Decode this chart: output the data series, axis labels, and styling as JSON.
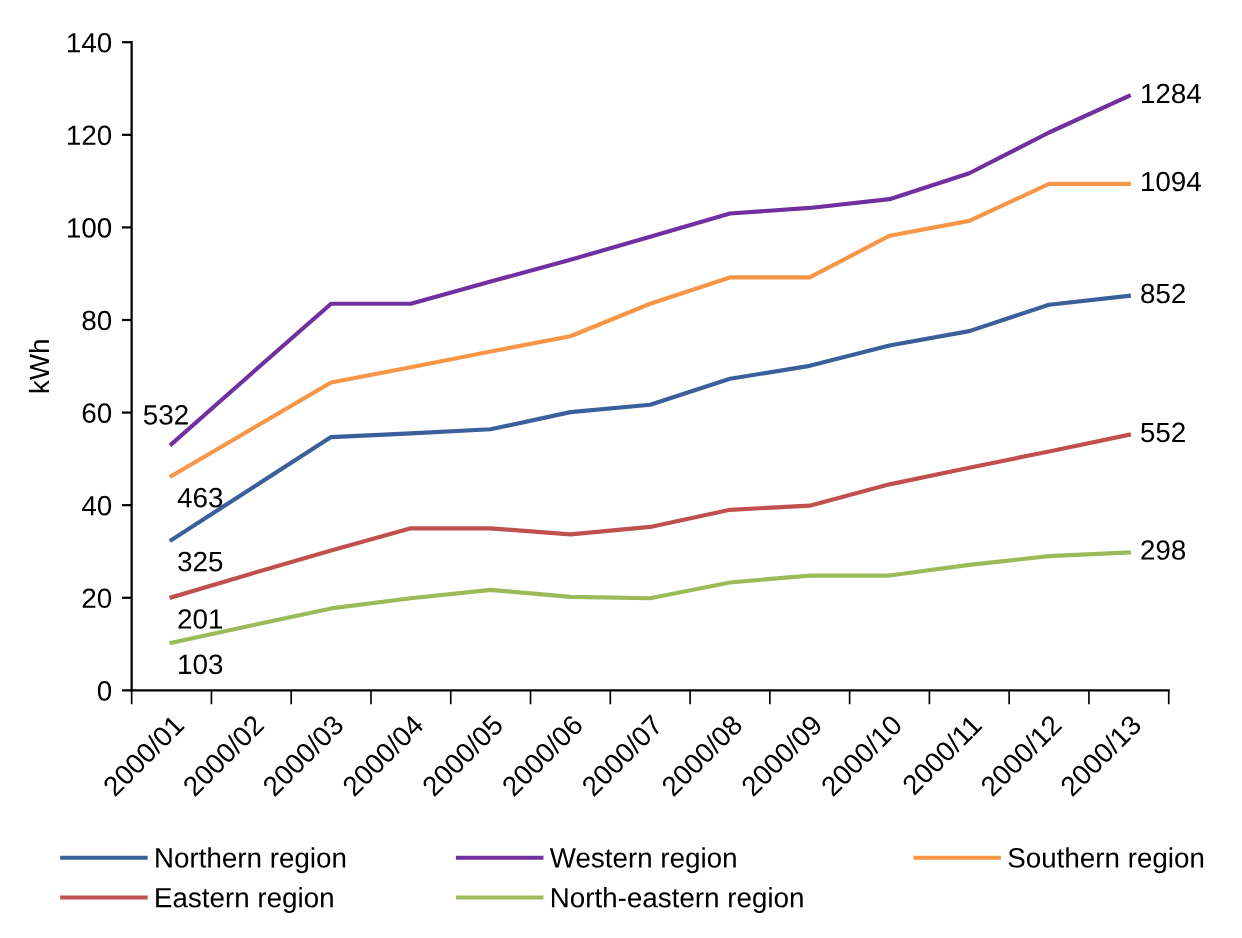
{
  "chart_data": {
    "type": "line",
    "ylabel": "kWh",
    "ylim": [
      0,
      140
    ],
    "yticks": [
      0,
      20,
      40,
      60,
      80,
      100,
      120,
      140
    ],
    "categories": [
      "2000/01",
      "2000/02",
      "2000/03",
      "2000/04",
      "2000/05",
      "2000/06",
      "2000/07",
      "2000/08",
      "2000/09",
      "2000/10",
      "2000/11",
      "2000/12",
      "2000/13"
    ],
    "grid": false,
    "legend": "bottom",
    "marker": "none",
    "line_style": "solid",
    "series": [
      {
        "name": "Northern region",
        "color": "#3b5f9b",
        "values": [
          32.5,
          43.6,
          54.7,
          55.5,
          56.4,
          60.1,
          61.7,
          67.3,
          70.1,
          74.5,
          77.6,
          83.3,
          85.2
        ]
      },
      {
        "name": "Western region",
        "color": "#7030a0",
        "values": [
          53.2,
          68.4,
          83.5,
          83.5,
          88.3,
          93.0,
          98,
          103,
          104.2,
          106.1,
          111.7,
          120.5,
          128.4
        ]
      },
      {
        "name": "Southern region",
        "color": "#f79646",
        "values": [
          46.3,
          56.4,
          66.5,
          69.8,
          73.2,
          76.5,
          83.5,
          89.2,
          89.2,
          98.2,
          101.4,
          109.4,
          109.4
        ]
      },
      {
        "name": "Eastern region",
        "color": "#c0504d",
        "values": [
          20.1,
          25.2,
          30.2,
          35,
          35,
          33.7,
          35.3,
          39,
          39.9,
          44.5,
          48.1,
          51.6,
          55.2
        ]
      },
      {
        "name": "North-eastern region",
        "color": "#9bbb59",
        "values": [
          10.3,
          14.0,
          17.7,
          19.9,
          21.7,
          20.2,
          19.9,
          23.3,
          24.8,
          24.8,
          27.1,
          29.0,
          29.8
        ]
      }
    ],
    "annotations": [
      {
        "text": "532",
        "x": "2000/01",
        "y": 53.2
      },
      {
        "text": "463",
        "x": "2000/01",
        "y": 46.3
      },
      {
        "text": "325",
        "x": "2000/01",
        "y": 32.5
      },
      {
        "text": "201",
        "x": "2000/01",
        "y": 20.1
      },
      {
        "text": "103",
        "x": "2000/01",
        "y": 10.3
      },
      {
        "text": "1284",
        "x": "2000/13",
        "y": 128.4
      },
      {
        "text": "1094",
        "x": "2000/13",
        "y": 109.4
      },
      {
        "text": "852",
        "x": "2000/13",
        "y": 85.2
      },
      {
        "text": "552",
        "x": "2000/13",
        "y": 55.2
      },
      {
        "text": "298",
        "x": "2000/13",
        "y": 29.8
      }
    ]
  }
}
